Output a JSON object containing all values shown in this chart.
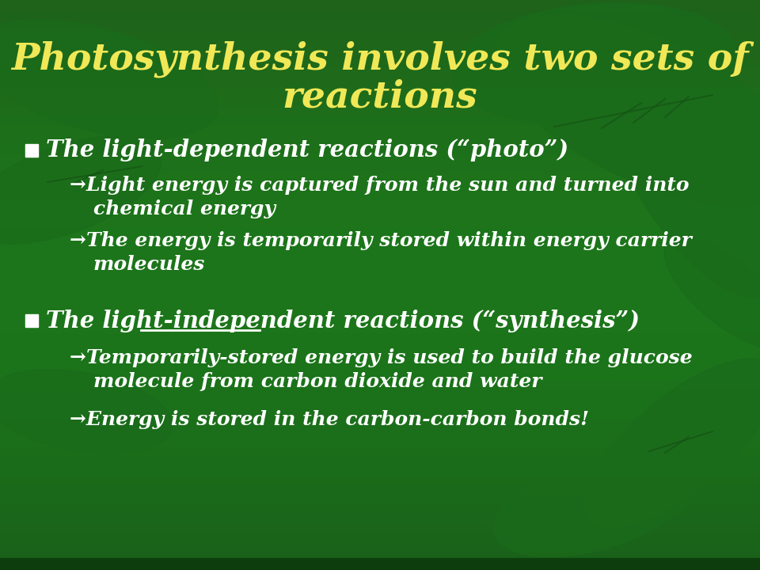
{
  "title_line1": "Photosynthesis involves two sets of",
  "title_line2": "reactions",
  "title_color": "#f0e857",
  "title_fontsize": 34,
  "bg_color": "#2d7a2d",
  "bullet1_header": "The light-dependent reactions (“photo”)",
  "bullet2_header": "The light-independent reactions (“synthesis”)",
  "header_color": "#ffffff",
  "sub_color": "#ffffff",
  "header_fontsize": 21,
  "sub_fontsize": 18,
  "bullet_square_color": "#ffffff",
  "leaf_color": "#1a6b1a",
  "leaf_dark": "#155015",
  "sub1_line1": "→Light energy is captured from the sun and turned into",
  "sub1_line2": "chemical energy",
  "sub2_line1": "→The energy is temporarily stored within energy carrier",
  "sub2_line2": "molecules",
  "sub3_line1": "→Temporarily-stored energy is used to build the glucose",
  "sub3_line2": "molecule from carbon dioxide and water",
  "sub4_line1": "→Energy is stored in the carbon-carbon bonds!"
}
